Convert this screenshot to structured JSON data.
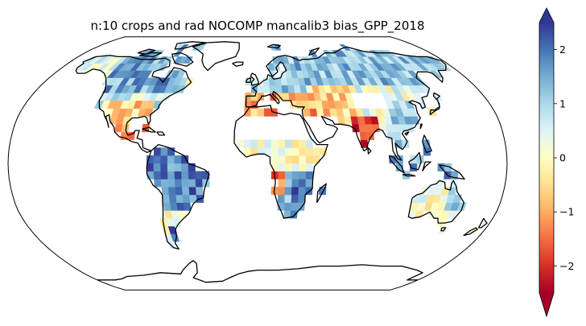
{
  "figure": {
    "title": "n:10 crops and rad NOCOMP mancalib3 bias_GPP_2018"
  },
  "map": {
    "projection": "robinson",
    "field": "GPP bias 2018",
    "grid_resolution_deg": 5
  },
  "colorbar": {
    "colormap": "RdYlBu",
    "range": [
      -2.5,
      2.5
    ],
    "extend": "both",
    "ticks": [
      {
        "value": 2,
        "label": "2"
      },
      {
        "value": 1,
        "label": "1"
      },
      {
        "value": 0,
        "label": "0"
      },
      {
        "value": -1,
        "label": "−1"
      },
      {
        "value": -2,
        "label": "−2"
      }
    ]
  },
  "colors": {
    "land_outline": "#000000",
    "missing": "#ffffff"
  }
}
